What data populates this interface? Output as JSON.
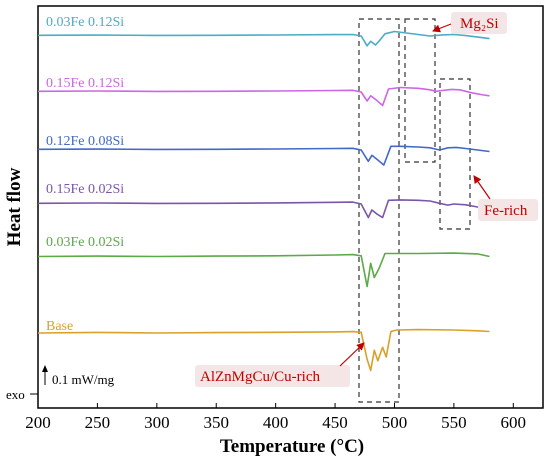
{
  "chart_data": {
    "type": "line",
    "xlabel": "Temperature (°C)",
    "ylabel": "Heat flow",
    "xlim": [
      200,
      625
    ],
    "x_ticks": [
      "200",
      "250",
      "300",
      "350",
      "400",
      "450",
      "500",
      "550",
      "600"
    ],
    "y_ticks_shown": false,
    "grid": false,
    "legend": "labels printed above each curve, left side",
    "scale_bar_label": "0.1 mW/mg",
    "exo_label": "exo",
    "series": [
      {
        "name": "0.03Fe 0.12Si",
        "color": "#4bacc6",
        "x": [
          200,
          250,
          300,
          350,
          400,
          450,
          465,
          472,
          477,
          480,
          484,
          488,
          492,
          500,
          510,
          520,
          530,
          540,
          550,
          560,
          570,
          580
        ],
        "y": [
          1.01,
          1.012,
          1.008,
          1.01,
          1.013,
          1.018,
          1.02,
          1.0,
          0.87,
          0.93,
          0.88,
          0.95,
          1.03,
          1.06,
          1.04,
          1.02,
          1.0,
          1.015,
          1.02,
          1.005,
          0.985,
          0.965
        ]
      },
      {
        "name": "0.15Fe 0.12Si",
        "color": "#cc66e6",
        "x": [
          200,
          250,
          300,
          350,
          400,
          450,
          465,
          472,
          477,
          480,
          485,
          490,
          495,
          505,
          520,
          530,
          535,
          540,
          548,
          555,
          565,
          575,
          580
        ],
        "y": [
          1.01,
          1.013,
          1.008,
          1.01,
          1.014,
          1.02,
          1.022,
          1.0,
          0.88,
          0.95,
          0.89,
          0.82,
          1.04,
          1.06,
          1.05,
          1.03,
          1.01,
          1.02,
          1.035,
          1.03,
          0.99,
          0.96,
          0.95
        ]
      },
      {
        "name": "0.12Fe 0.08Si",
        "color": "#4169c8",
        "x": [
          200,
          250,
          300,
          350,
          400,
          450,
          465,
          472,
          478,
          481,
          485,
          491,
          497,
          505,
          520,
          530,
          538,
          545,
          552,
          560,
          570,
          580
        ],
        "y": [
          1.01,
          1.012,
          1.008,
          1.01,
          1.013,
          1.02,
          1.023,
          1.0,
          0.85,
          0.93,
          0.88,
          0.8,
          1.05,
          1.05,
          1.04,
          1.03,
          1.0,
          1.03,
          1.035,
          1.02,
          1.0,
          0.98
        ]
      },
      {
        "name": "0.15Fe 0.02Si",
        "color": "#7b55a8",
        "x": [
          200,
          250,
          300,
          350,
          400,
          450,
          465,
          472,
          478,
          481,
          485,
          490,
          495,
          505,
          520,
          530,
          538,
          545,
          550,
          560,
          570,
          580
        ],
        "y": [
          1.01,
          1.013,
          1.008,
          1.01,
          1.015,
          1.022,
          1.025,
          1.0,
          0.82,
          0.92,
          0.87,
          0.82,
          1.05,
          1.055,
          1.05,
          1.04,
          1.01,
          0.985,
          1.0,
          0.99,
          0.96,
          0.93
        ]
      },
      {
        "name": "0.03Fe 0.02Si",
        "color": "#5aaa46",
        "x": [
          200,
          250,
          300,
          350,
          400,
          450,
          465,
          472,
          477,
          480,
          483,
          487,
          492,
          500,
          520,
          550,
          570,
          580
        ],
        "y": [
          1.02,
          1.025,
          1.02,
          1.025,
          1.03,
          1.04,
          1.045,
          1.03,
          0.62,
          0.93,
          0.74,
          0.86,
          1.06,
          1.06,
          1.06,
          1.065,
          1.055,
          1.02
        ]
      },
      {
        "name": "Base",
        "color": "#d9a12a",
        "x": [
          200,
          250,
          300,
          350,
          400,
          450,
          465,
          472,
          477,
          480,
          483,
          486,
          490,
          493,
          497,
          502,
          520,
          550,
          570,
          580
        ],
        "y": [
          1.0,
          1.008,
          1.0,
          1.005,
          1.01,
          1.015,
          1.018,
          1.01,
          0.65,
          0.5,
          0.77,
          0.63,
          0.81,
          0.68,
          1.02,
          1.04,
          1.045,
          1.04,
          1.03,
          1.02
        ]
      }
    ],
    "annotations": [
      {
        "label": "Mg₂Si"
      },
      {
        "label": "Fe-rich"
      },
      {
        "label": "AlZnMgCu/Cu-rich"
      }
    ]
  }
}
